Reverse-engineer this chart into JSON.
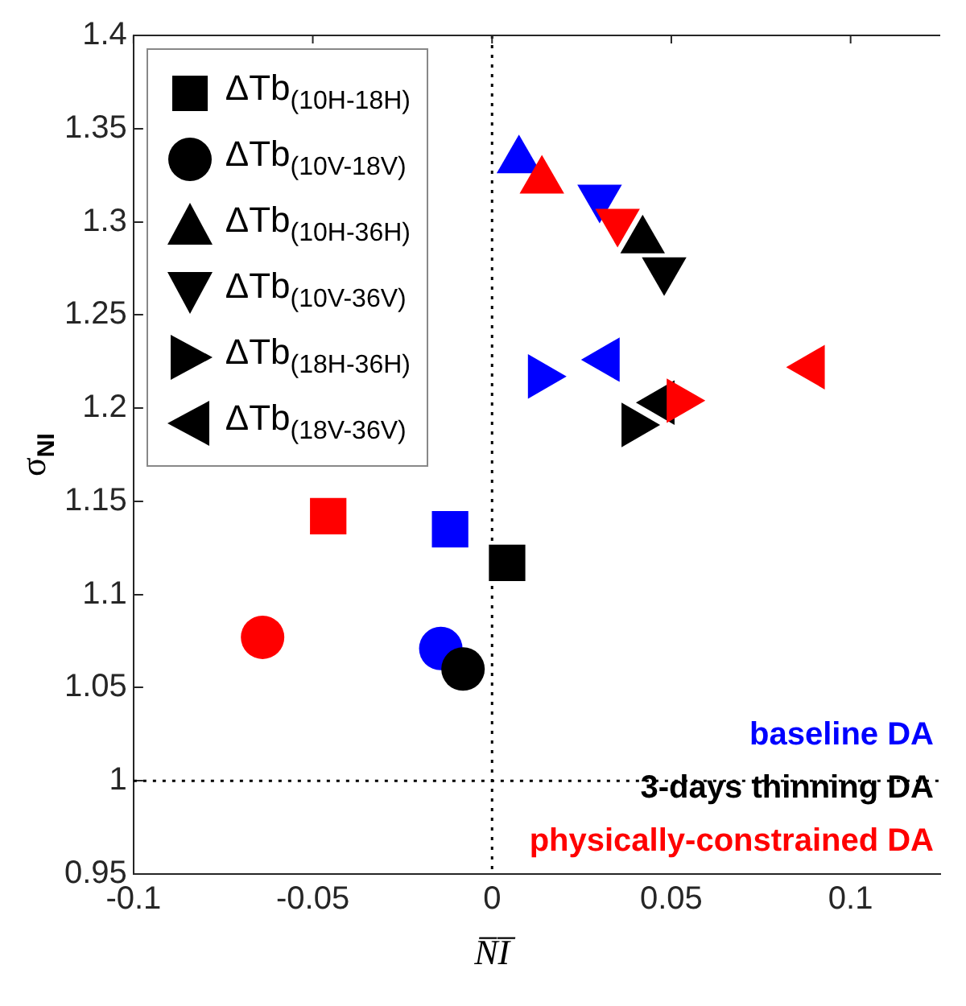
{
  "chart_data": {
    "type": "scatter",
    "xlabel": "N̅I̅",
    "ylabel": "σ$_{NI}$",
    "xlim": [
      -0.1,
      0.125
    ],
    "xticks": [
      -0.1,
      -0.05,
      0,
      0.05,
      0.1
    ],
    "ylim": [
      0.95,
      1.4
    ],
    "yticks": [
      0.95,
      1,
      1.05,
      1.1,
      1.15,
      1.2,
      1.25,
      1.3,
      1.35,
      1.4
    ],
    "grid": false,
    "legend": "top left",
    "series": [
      {
        "name": "ΔTb$_{(10H-18H)}$",
        "marker": "square",
        "color": "#000000",
        "colors": [
          "#0000ff",
          "#000000",
          "#ff0000"
        ],
        "x": [
          -0.0117,
          0.0042,
          -0.0457
        ],
        "values": [
          1.135,
          1.117,
          1.142
        ]
      },
      {
        "name": "ΔTb$_{(10V-18V)}$",
        "marker": "circle",
        "color": "#000000",
        "colors": [
          "#0000ff",
          "#000000",
          "#ff0000"
        ],
        "x": [
          -0.0143,
          -0.0081,
          -0.064
        ],
        "values": [
          1.071,
          1.06,
          1.077
        ]
      },
      {
        "name": "ΔTb$_{(10H-36H)}$",
        "marker": "triangle",
        "color": "#000000",
        "colors": [
          "#0000ff",
          "#000000",
          "#ff0000"
        ],
        "x": [
          0.0075,
          0.042,
          0.0139
        ],
        "values": [
          1.333,
          1.29,
          1.322
        ]
      },
      {
        "name": "ΔTb$_{(10V-36V)}$",
        "marker": "triangle-down",
        "color": "#000000",
        "colors": [
          "#0000ff",
          "#000000",
          "#ff0000"
        ],
        "x": [
          0.03,
          0.048,
          0.035
        ],
        "values": [
          1.313,
          1.274,
          1.3
        ]
      },
      {
        "name": "ΔTb$_{(18H-36H)}$",
        "marker": "triangle-right",
        "color": "#000000",
        "colors": [
          "#0000ff",
          "#000000",
          "#ff0000"
        ],
        "x": [
          0.0136,
          0.0397,
          0.0523
        ],
        "values": [
          1.217,
          1.191,
          1.204
        ]
      },
      {
        "name": "ΔTb$_{(18V-36V)}$",
        "marker": "triangle-left",
        "color": "#000000",
        "colors": [
          "#0000ff",
          "#000000",
          "#ff0000"
        ],
        "x": [
          0.032,
          0.0473,
          0.0892
        ],
        "values": [
          1.226,
          1.203,
          1.222
        ]
      }
    ],
    "ref_lines": [
      {
        "axis": "x",
        "value": 0,
        "line_style": "dotted",
        "color": "#000000"
      },
      {
        "axis": "y",
        "value": 1,
        "line_style": "dotted",
        "color": "#000000"
      }
    ],
    "annotations": [
      "baseline DA",
      "3-days thinning DA",
      "physically-constrained DA"
    ]
  }
}
